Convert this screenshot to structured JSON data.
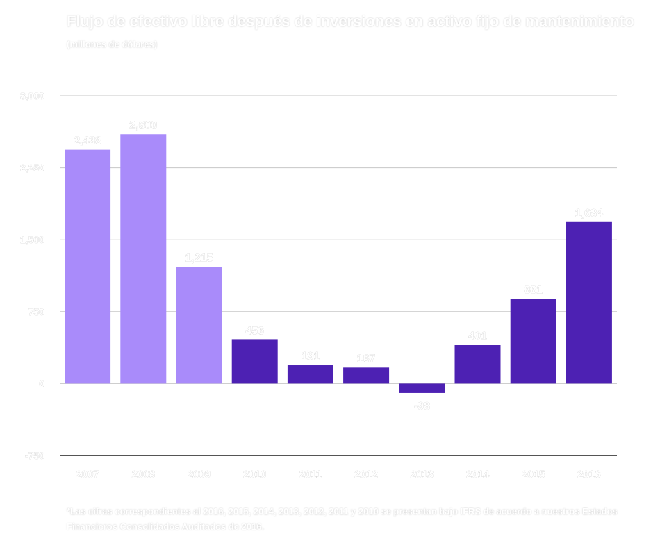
{
  "title": "Flujo de efectivo libre después de inversiones en activo fijo de mantenimiento",
  "subtitle": "(millones de dólares)",
  "footnote": "*Las cifras correspondientes al 2016, 2015, 2014, 2013, 2012, 2011 y 2010 se presentan bajo IFRS de acuerdo a nuestros Estados Financieros Consolidados Auditados de 2016.",
  "colors": {
    "light": "#a98bfa",
    "dark": "#4d21b3",
    "grid": "#c7c7c7",
    "axis": "#555555"
  },
  "chart_data": {
    "type": "bar",
    "title": "Flujo de efectivo libre después de inversiones en activo fijo de mantenimiento",
    "ylabel": "(millones de dólares)",
    "categories": [
      "2007",
      "2008",
      "2009",
      "2010",
      "2011",
      "2012",
      "2013",
      "2014",
      "2015",
      "2016"
    ],
    "values": [
      2438,
      2600,
      1215,
      456,
      191,
      167,
      -98,
      401,
      881,
      1684
    ],
    "data_labels": [
      "2,438",
      "2,600",
      "1,215",
      "456",
      "191",
      "167",
      "-98",
      "401",
      "881",
      "1,684"
    ],
    "bar_color_group": [
      "light",
      "light",
      "light",
      "dark",
      "dark",
      "dark",
      "dark",
      "dark",
      "dark",
      "dark"
    ],
    "ylim": [
      -750,
      3000
    ],
    "yticks": [
      3000,
      2250,
      1500,
      750,
      0,
      -750
    ],
    "ytick_labels": [
      "3,000",
      "2,250",
      "1,500",
      "750",
      "0",
      "-750"
    ],
    "grid": true,
    "legend": "none"
  }
}
